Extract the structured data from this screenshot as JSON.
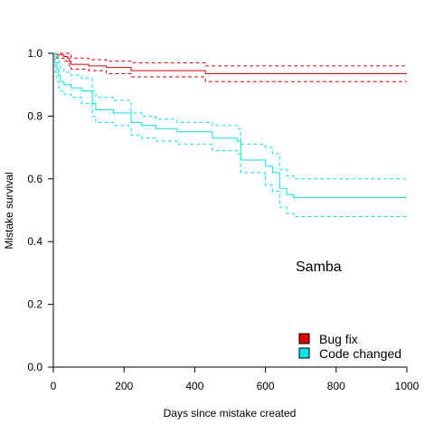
{
  "chart_data": {
    "type": "line",
    "title": "",
    "xlabel": "Days since mistake created",
    "ylabel": "Mistake survival",
    "xlim": [
      0,
      1000
    ],
    "ylim": [
      0,
      1
    ],
    "x_ticks": [
      "0",
      "200",
      "400",
      "600",
      "800",
      "1000"
    ],
    "y_ticks": [
      "0.0",
      "0.2",
      "0.4",
      "0.6",
      "0.8",
      "1.0"
    ],
    "annotation": "Samba",
    "grid": false,
    "legend_position": "bottom-right",
    "step": true,
    "series": [
      {
        "name": "Bug fix",
        "color": "#DF0000",
        "x": [
          0,
          10,
          30,
          40,
          45,
          50,
          100,
          150,
          220,
          430,
          1000
        ],
        "y": [
          1.0,
          0.995,
          0.99,
          0.985,
          0.975,
          0.965,
          0.96,
          0.955,
          0.945,
          0.935,
          0.935
        ],
        "ci_upper": [
          1.0,
          1.0,
          1.0,
          1.0,
          0.995,
          0.985,
          0.98,
          0.975,
          0.97,
          0.96,
          0.96
        ],
        "ci_lower": [
          1.0,
          0.985,
          0.975,
          0.97,
          0.96,
          0.95,
          0.945,
          0.935,
          0.925,
          0.91,
          0.91
        ]
      },
      {
        "name": "Code changed",
        "color": "#00E5E5",
        "x": [
          0,
          5,
          10,
          15,
          20,
          30,
          50,
          80,
          110,
          120,
          170,
          220,
          250,
          290,
          350,
          450,
          520,
          530,
          600,
          620,
          640,
          660,
          680,
          1000
        ],
        "y": [
          1.0,
          0.97,
          0.95,
          0.93,
          0.91,
          0.9,
          0.89,
          0.88,
          0.84,
          0.82,
          0.81,
          0.78,
          0.77,
          0.76,
          0.75,
          0.73,
          0.72,
          0.66,
          0.64,
          0.62,
          0.57,
          0.55,
          0.54,
          0.54
        ],
        "ci_upper": [
          1.0,
          1.0,
          0.99,
          0.97,
          0.95,
          0.94,
          0.93,
          0.92,
          0.88,
          0.86,
          0.85,
          0.81,
          0.8,
          0.79,
          0.78,
          0.77,
          0.76,
          0.71,
          0.7,
          0.68,
          0.63,
          0.61,
          0.6,
          0.6
        ],
        "ci_lower": [
          1.0,
          0.94,
          0.91,
          0.89,
          0.88,
          0.87,
          0.86,
          0.84,
          0.8,
          0.78,
          0.77,
          0.74,
          0.73,
          0.72,
          0.71,
          0.69,
          0.68,
          0.62,
          0.58,
          0.56,
          0.51,
          0.49,
          0.48,
          0.48
        ]
      }
    ]
  }
}
